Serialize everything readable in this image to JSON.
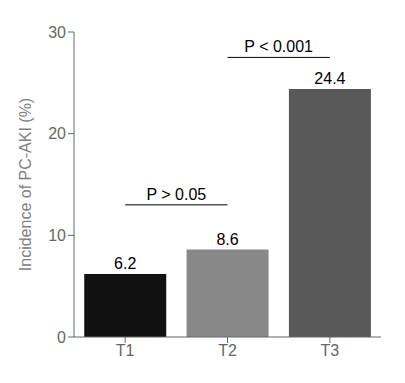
{
  "chart_data": {
    "type": "bar",
    "categories": [
      "T1",
      "T2",
      "T3"
    ],
    "values": [
      6.2,
      8.6,
      24.4
    ],
    "colors": [
      "#111111",
      "#888888",
      "#595959"
    ],
    "ylabel": "Incidence of PC-AKI (%)",
    "ylim": [
      0,
      30
    ],
    "yticks": [
      0,
      10,
      20,
      30
    ],
    "data_labels": true,
    "grid": false,
    "annotations": [
      {
        "text": "P > 0.05",
        "from": "T1",
        "to": "T2",
        "y": 13.0
      },
      {
        "text": "P < 0.001",
        "from": "T2",
        "to": "T3",
        "y": 27.5
      }
    ]
  }
}
